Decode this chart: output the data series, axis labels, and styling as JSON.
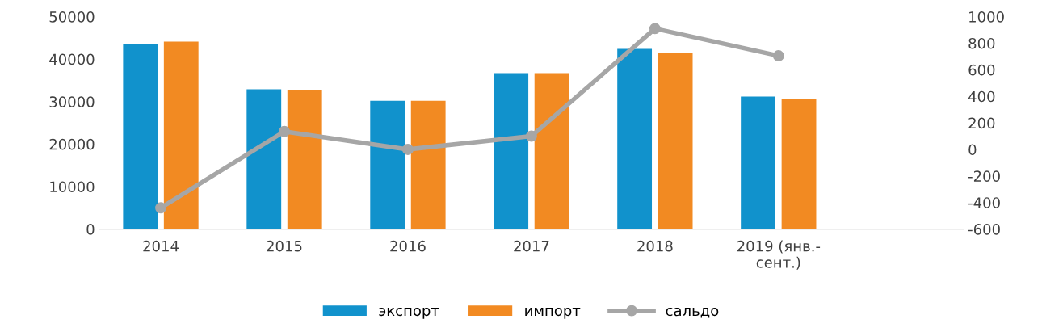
{
  "chart_data": {
    "type": "bar",
    "categories": [
      "2014",
      "2015",
      "2016",
      "2017",
      "2018",
      "2019 (янв.-\nсент.)",
      null
    ],
    "series": [
      {
        "name": "экспорт",
        "color": "#1192cc",
        "values": [
          43500,
          32900,
          30200,
          36700,
          42400,
          31200,
          null
        ]
      },
      {
        "name": "импорт",
        "color": "#f28a22",
        "values": [
          44100,
          32700,
          30200,
          36700,
          41400,
          30600,
          null
        ]
      },
      {
        "name": "сальдо",
        "type": "line",
        "axis": "y2",
        "color": "#a6a6a6",
        "marker": "circle",
        "values": [
          -440,
          135,
          0,
          100,
          910,
          705,
          null
        ]
      }
    ],
    "ylim": [
      0,
      50000
    ],
    "yticks": [
      0,
      10000,
      20000,
      30000,
      40000,
      50000
    ],
    "y2lim": [
      -600,
      1000
    ],
    "y2ticks": [
      -600,
      -400,
      -200,
      0,
      200,
      400,
      600,
      800,
      1000
    ],
    "grid": false,
    "legend": "bottom"
  }
}
